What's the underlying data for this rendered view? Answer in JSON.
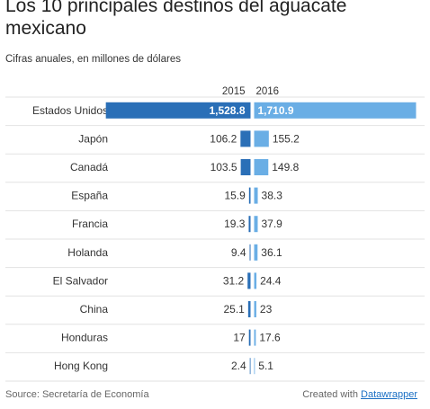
{
  "title": "Los 10 principales destinos del aguacate mexicano",
  "subtitle": "Cifras anuales, en millones de dólares",
  "footer": {
    "source": "Source: Secretaría de Economía",
    "created_with": "Created with",
    "tool": "Datawrapper"
  },
  "colors": {
    "series_2015": "#2a6fb7",
    "series_2016": "#6aaee5",
    "row_divider": "#e2e2e2",
    "text": "#333333"
  },
  "chart_data": {
    "type": "bar",
    "categories": [
      "Estados Unidos",
      "Japón",
      "Canadá",
      "España",
      "Francia",
      "Holanda",
      "El Salvador",
      "China",
      "Honduras",
      "Hong Kong"
    ],
    "series": [
      {
        "name": "2015",
        "values": [
          1528.8,
          106.2,
          103.5,
          15.9,
          19.3,
          9.4,
          31.2,
          25.1,
          17,
          2.4
        ],
        "labels": [
          "1,528.8",
          "106.2",
          "103.5",
          "15.9",
          "19.3",
          "9.4",
          "31.2",
          "25.1",
          "17",
          "2.4"
        ]
      },
      {
        "name": "2016",
        "values": [
          1710.9,
          155.2,
          149.8,
          38.3,
          37.9,
          36.1,
          24.4,
          23,
          17.6,
          5.1
        ],
        "labels": [
          "1,710.9",
          "155.2",
          "149.8",
          "38.3",
          "37.9",
          "36.1",
          "24.4",
          "23",
          "17.6",
          "5.1"
        ]
      }
    ],
    "grid": false,
    "legend": "top"
  }
}
